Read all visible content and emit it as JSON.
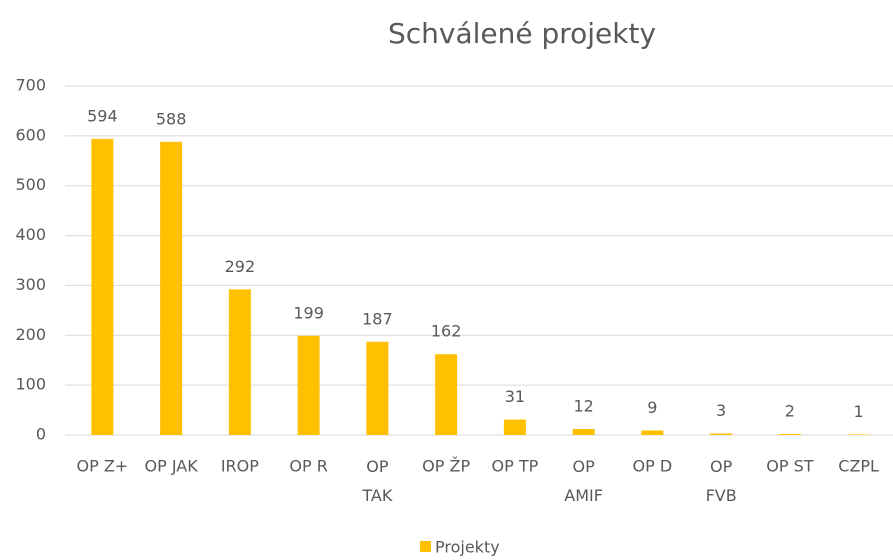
{
  "chart_data": {
    "type": "bar",
    "title": "Schválené projekty",
    "categories": [
      "OP Z+",
      "OP JAK",
      "IROP",
      "OP R",
      "OP TAK",
      "OP ŽP",
      "OP TP",
      "OP AMIF",
      "OP D",
      "OP FVB",
      "OP ST",
      "CZPL"
    ],
    "series": [
      {
        "name": "Projekty",
        "color": "#ffc000",
        "values": [
          594,
          588,
          292,
          199,
          187,
          162,
          31,
          12,
          9,
          3,
          2,
          1
        ]
      }
    ],
    "ylim": [
      0,
      700
    ],
    "yticks": [
      0,
      100,
      200,
      300,
      400,
      500,
      600,
      700
    ],
    "grid": true,
    "legend": "bottom"
  }
}
